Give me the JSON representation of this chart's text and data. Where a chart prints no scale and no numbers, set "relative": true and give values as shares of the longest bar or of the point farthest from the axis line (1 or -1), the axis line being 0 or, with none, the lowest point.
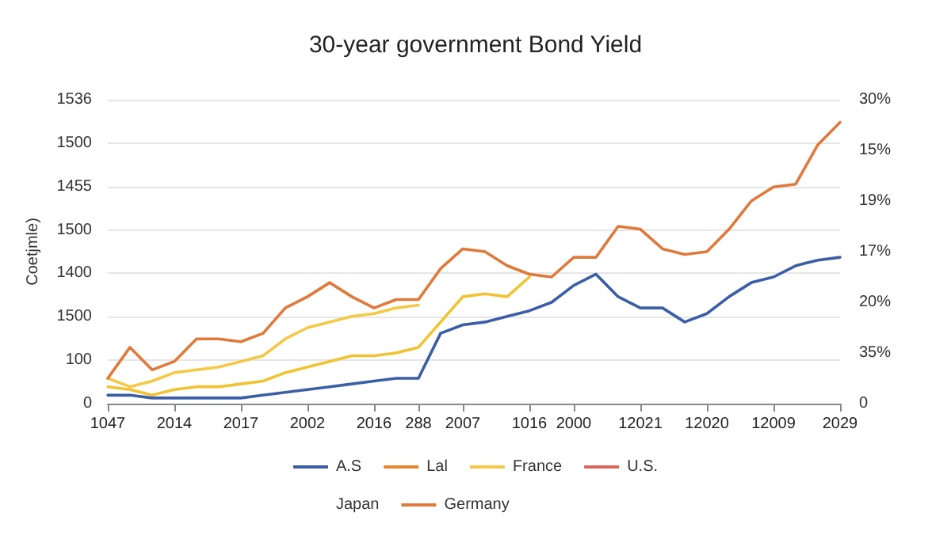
{
  "chart_data": {
    "type": "line",
    "title": "30-year government Bond Yield",
    "ylabel": "Coetjmle)",
    "grid": "y",
    "legend": "bottom",
    "marker": "none",
    "line_style": "solid",
    "relative": true,
    "categories": [
      "1047",
      null,
      null,
      "2014",
      null,
      null,
      "2017",
      null,
      null,
      "2002",
      null,
      null,
      "2016",
      null,
      "288",
      null,
      "2007",
      null,
      null,
      "1016",
      null,
      "2000",
      null,
      null,
      "12021",
      null,
      null,
      "12020",
      null,
      null,
      "12009",
      null,
      null,
      "2029"
    ],
    "annotations": [
      "0",
      "100",
      "1500",
      "1400",
      "1500",
      "1455",
      "1500",
      "1536",
      "0",
      "35%",
      "20%",
      "17%",
      "19%",
      "15%",
      "30%"
    ],
    "series": [
      {
        "color": "#f2c230",
        "values": [
          0.06,
          0.05,
          0.03,
          0.05,
          0.06,
          0.06,
          0.07,
          0.08,
          0.11,
          0.13,
          0.15,
          0.17,
          0.17,
          0.18,
          0.2,
          0.29,
          0.38,
          0.39,
          0.38,
          0.45,
          null,
          null,
          null,
          null,
          null,
          null,
          null,
          null,
          null,
          null,
          null,
          null,
          null,
          null
        ]
      },
      {
        "name": "A.S",
        "color": "#3b5ea8",
        "values": [
          0.03,
          0.03,
          0.02,
          0.02,
          0.02,
          0.02,
          0.02,
          0.03,
          0.04,
          0.05,
          0.06,
          0.07,
          0.08,
          0.09,
          0.09,
          0.25,
          0.28,
          0.29,
          0.31,
          0.33,
          0.36,
          0.42,
          0.46,
          0.38,
          0.34,
          0.34,
          0.29,
          0.32,
          0.38,
          0.43,
          0.45,
          0.49,
          0.51,
          0.52
        ]
      },
      {
        "name": "Lal",
        "color": "#e8852f",
        "values": [
          null,
          null,
          null,
          null,
          null,
          null,
          null,
          null,
          null,
          null,
          null,
          null,
          null,
          null,
          null,
          null,
          null,
          null,
          null,
          null,
          null,
          null,
          null,
          null,
          null,
          null,
          null,
          null,
          null,
          null,
          null,
          null,
          null,
          null
        ]
      },
      {
        "name": "France",
        "color": "#f5c845",
        "values": [
          0.09,
          0.06,
          0.08,
          0.11,
          0.12,
          0.13,
          0.15,
          0.17,
          0.23,
          0.27,
          0.29,
          0.31,
          0.32,
          0.34,
          0.35,
          null,
          null,
          null,
          null,
          null,
          null,
          null,
          null,
          null,
          null,
          null,
          null,
          null,
          null,
          null,
          null,
          null,
          null,
          null
        ]
      },
      {
        "name": "U.S.",
        "color": "#d9665a",
        "values": [
          null,
          null,
          null,
          null,
          null,
          null,
          null,
          null,
          null,
          null,
          null,
          null,
          null,
          null,
          null,
          null,
          null,
          null,
          null,
          null,
          null,
          null,
          null,
          null,
          null,
          null,
          null,
          null,
          null,
          null,
          null,
          null,
          null,
          null
        ]
      },
      {
        "name": "Japan",
        "color": null,
        "values": [
          null,
          null,
          null,
          null,
          null,
          null,
          null,
          null,
          null,
          null,
          null,
          null,
          null,
          null,
          null,
          null,
          null,
          null,
          null,
          null,
          null,
          null,
          null,
          null,
          null,
          null,
          null,
          null,
          null,
          null,
          null,
          null,
          null,
          null
        ]
      },
      {
        "name": "Germany",
        "color": "#e0793a",
        "values": [
          0.09,
          0.2,
          0.12,
          0.15,
          0.23,
          0.23,
          0.22,
          0.25,
          0.34,
          0.38,
          0.43,
          0.38,
          0.34,
          0.37,
          0.37,
          0.48,
          0.55,
          0.54,
          0.49,
          0.46,
          0.45,
          0.52,
          0.52,
          0.63,
          0.62,
          0.55,
          0.53,
          0.54,
          0.62,
          0.72,
          0.77,
          0.78,
          0.92,
          1
        ]
      }
    ]
  }
}
